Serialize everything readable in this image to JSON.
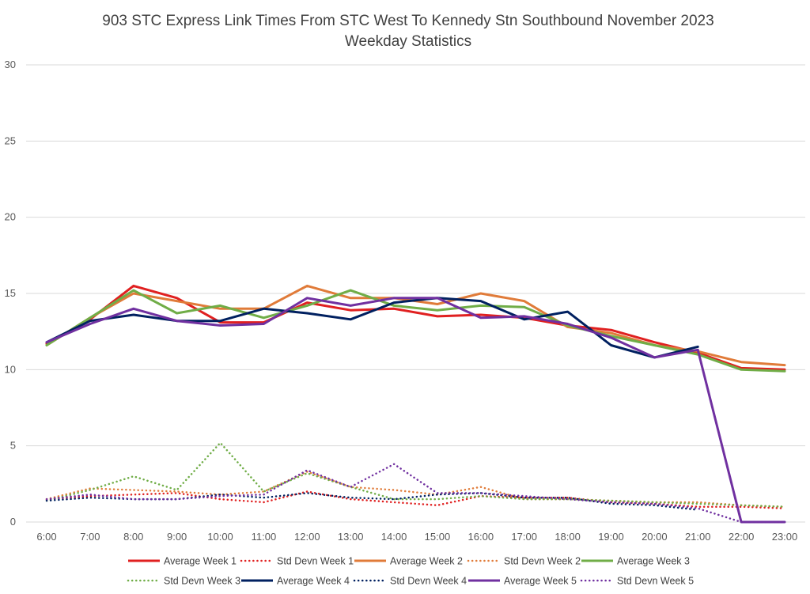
{
  "chart_data": {
    "type": "line",
    "title": "903 STC Express Link Times From STC West To Kennedy Stn Southbound November 2023",
    "subtitle": "Weekday Statistics",
    "xlabel": "",
    "ylabel": "",
    "ylim": [
      0,
      30
    ],
    "yticks": [
      "0",
      "5",
      "10",
      "15",
      "20",
      "25",
      "30"
    ],
    "grid": true,
    "legend_position": "bottom",
    "categories": [
      "6:00",
      "7:00",
      "8:00",
      "9:00",
      "10:00",
      "11:00",
      "12:00",
      "13:00",
      "14:00",
      "15:00",
      "16:00",
      "17:00",
      "18:00",
      "19:00",
      "20:00",
      "21:00",
      "22:00",
      "23:00"
    ],
    "series": [
      {
        "name": "Average Week 1",
        "color": "#e02020",
        "style": "solid",
        "values": [
          11.7,
          13.3,
          15.5,
          14.7,
          13.1,
          13.1,
          14.4,
          13.9,
          14.0,
          13.5,
          13.6,
          13.4,
          12.9,
          12.6,
          11.8,
          11.1,
          10.1,
          10.0
        ]
      },
      {
        "name": "Std Devn Week 1",
        "color": "#e02020",
        "style": "dotted",
        "values": [
          1.5,
          1.7,
          1.8,
          1.9,
          1.5,
          1.3,
          2.0,
          1.5,
          1.3,
          1.1,
          1.7,
          1.6,
          1.6,
          1.3,
          1.2,
          1.0,
          1.0,
          0.9
        ]
      },
      {
        "name": "Average Week 2",
        "color": "#e07b39",
        "style": "solid",
        "values": [
          11.6,
          13.4,
          15.0,
          14.5,
          14.0,
          14.0,
          15.5,
          14.7,
          14.7,
          14.3,
          15.0,
          14.5,
          12.8,
          12.4,
          11.6,
          11.2,
          10.5,
          10.3
        ]
      },
      {
        "name": "Std Devn Week 2",
        "color": "#e07b39",
        "style": "dotted",
        "values": [
          1.5,
          2.2,
          2.1,
          2.0,
          1.8,
          2.0,
          3.3,
          2.3,
          2.1,
          1.8,
          2.3,
          1.5,
          1.5,
          1.4,
          1.3,
          1.3,
          1.1,
          1.0
        ]
      },
      {
        "name": "Average Week 3",
        "color": "#70ad47",
        "style": "solid",
        "values": [
          11.6,
          13.4,
          15.2,
          13.7,
          14.2,
          13.4,
          14.2,
          15.2,
          14.2,
          13.9,
          14.2,
          14.1,
          12.9,
          12.2,
          11.6,
          11.0,
          10.0,
          9.9
        ]
      },
      {
        "name": "Std Devn Week 3",
        "color": "#70ad47",
        "style": "dotted",
        "values": [
          1.4,
          2.1,
          3.0,
          2.1,
          5.2,
          2.0,
          3.2,
          2.3,
          1.5,
          1.5,
          1.7,
          1.5,
          1.5,
          1.4,
          1.3,
          1.2,
          1.1,
          1.0
        ]
      },
      {
        "name": "Average Week 4",
        "color": "#002060",
        "style": "solid",
        "values": [
          11.8,
          13.2,
          13.6,
          13.2,
          13.2,
          14.0,
          13.7,
          13.3,
          14.4,
          14.7,
          14.5,
          13.3,
          13.8,
          11.6,
          10.8,
          11.5,
          null,
          null
        ]
      },
      {
        "name": "Std Devn Week 4",
        "color": "#002060",
        "style": "dotted",
        "values": [
          1.4,
          1.6,
          1.5,
          1.5,
          1.8,
          1.6,
          1.9,
          1.6,
          1.5,
          1.8,
          1.9,
          1.6,
          1.6,
          1.2,
          1.1,
          0.8,
          null,
          null
        ]
      },
      {
        "name": "Average Week 5",
        "color": "#7030a0",
        "style": "solid",
        "values": [
          11.8,
          13.0,
          14.0,
          13.2,
          12.9,
          13.0,
          14.7,
          14.2,
          14.7,
          14.7,
          13.4,
          13.5,
          13.0,
          12.1,
          10.8,
          11.3,
          0,
          0
        ]
      },
      {
        "name": "Std Devn Week 5",
        "color": "#7030a0",
        "style": "dotted",
        "values": [
          1.5,
          1.8,
          1.5,
          1.5,
          1.7,
          1.8,
          3.4,
          2.3,
          3.8,
          1.9,
          1.9,
          1.7,
          1.5,
          1.3,
          1.2,
          0.9,
          0,
          0
        ]
      }
    ]
  }
}
